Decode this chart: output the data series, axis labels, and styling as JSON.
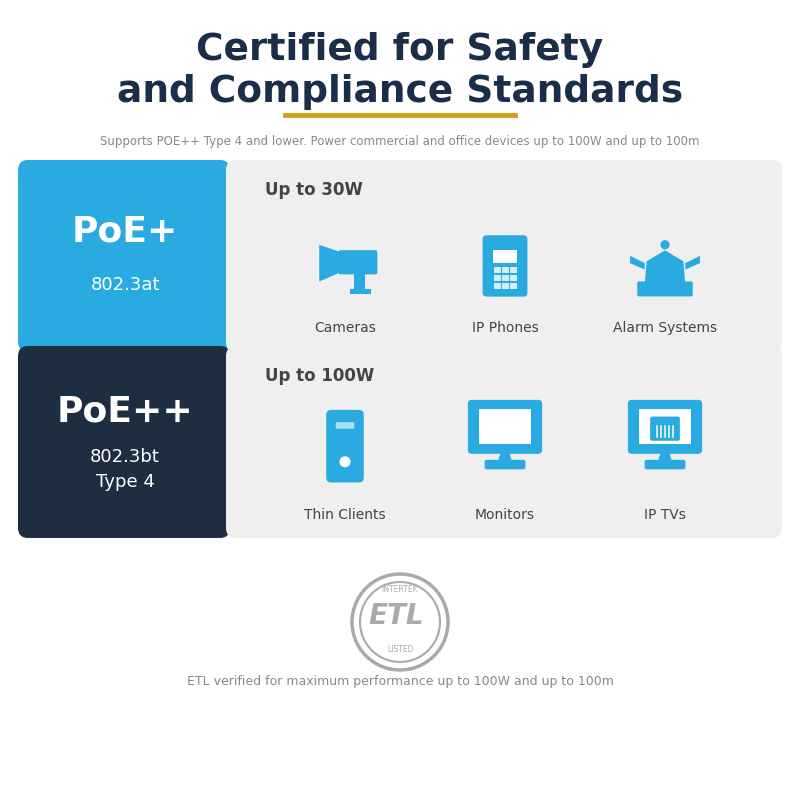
{
  "title_line1": "Certified for Safety",
  "title_line2": "and Compliance Standards",
  "title_color": "#1a2e4a",
  "gold_line_color": "#d4a017",
  "subtitle": "Supports POE++ Type 4 and lower. Power commercial and office devices up to 100W and up to 100m",
  "subtitle_color": "#888888",
  "bg_color": "#ffffff",
  "poe_plus_label": "PoE+",
  "poe_plus_sub": "802.3at",
  "poe_plus_bg": "#29abe2",
  "poe_plusplus_label": "PoE++",
  "poe_plusplus_sub1": "802.3bt",
  "poe_plusplus_sub2": "Type 4",
  "poe_plusplus_bg": "#1e2d40",
  "white": "#ffffff",
  "panel_bg": "#efefef",
  "blue_icon": "#29abe2",
  "dark_text": "#444444",
  "row1_power": "Up to 30W",
  "row1_devices": [
    "Cameras",
    "IP Phones",
    "Alarm Systems"
  ],
  "row2_power": "Up to 100W",
  "row2_devices": [
    "Thin Clients",
    "Monitors",
    "IP TVs"
  ],
  "etl_text": "ETL verified for maximum performance up to 100W and up to 100m",
  "etl_color": "#888888",
  "gray_circle": "#aaaaaa"
}
